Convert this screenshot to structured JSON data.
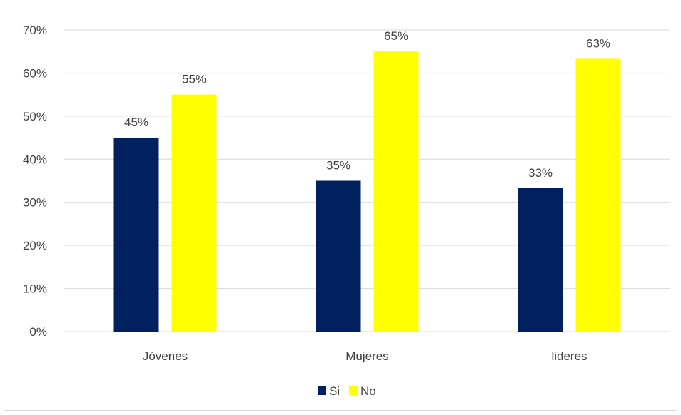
{
  "chart_data": {
    "type": "bar",
    "categories": [
      "Jóvenes",
      "Mujeres",
      "lideres"
    ],
    "series": [
      {
        "name": "Si",
        "values": [
          0.45,
          0.35,
          0.333
        ],
        "labels": [
          "45%",
          "35%",
          "33%"
        ],
        "color": "#002060"
      },
      {
        "name": "No",
        "values": [
          0.55,
          0.65,
          0.633
        ],
        "labels": [
          "55%",
          "65%",
          "63%"
        ],
        "color": "#FFFF00"
      }
    ],
    "ylim": [
      0,
      0.7
    ],
    "yticks": [
      0,
      0.1,
      0.2,
      0.3,
      0.4,
      0.5,
      0.6,
      0.7
    ],
    "ytick_labels": [
      "0%",
      "10%",
      "20%",
      "30%",
      "40%",
      "50%",
      "60%",
      "70%"
    ],
    "title": "",
    "xlabel": "",
    "ylabel": "",
    "grid": true,
    "gridline_color": "#d9d9d9",
    "legend_position": "bottom"
  }
}
